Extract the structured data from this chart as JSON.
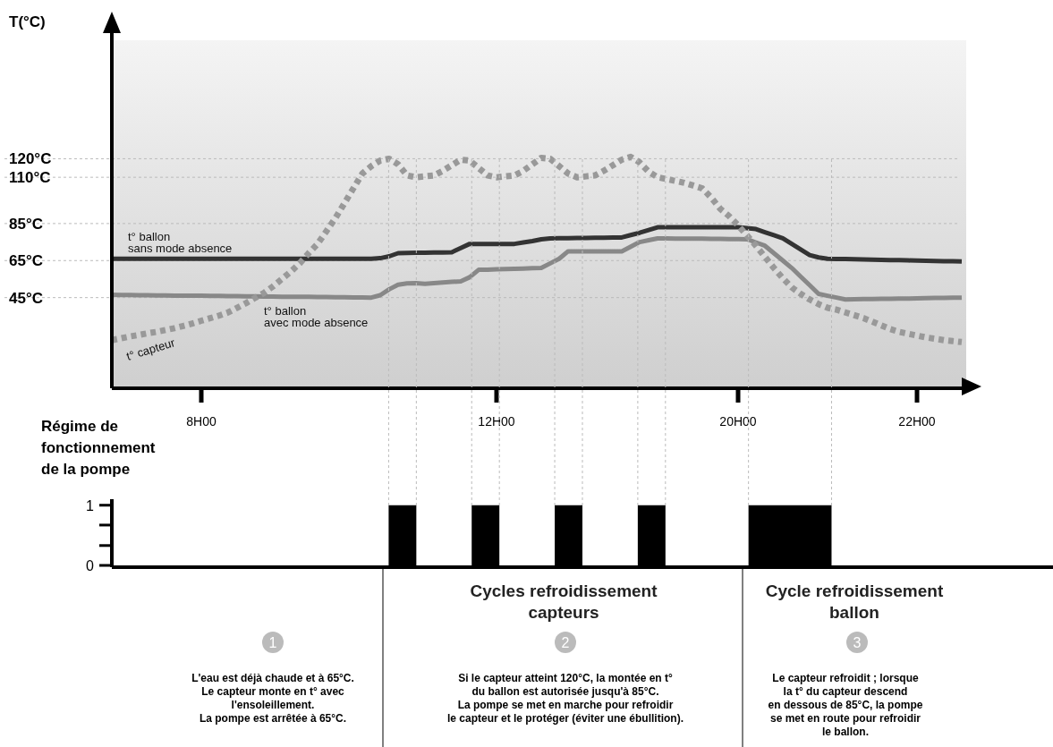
{
  "chart_data": [
    {
      "type": "line",
      "ylabel": "T(°C)",
      "ylim": [
        -3,
        184
      ],
      "categories": [
        null,
        null,
        null,
        null,
        null,
        null,
        null,
        null,
        null,
        null,
        "8H00",
        null,
        null,
        null,
        null,
        null,
        null,
        null,
        null,
        null,
        null,
        null,
        null,
        null,
        null,
        null,
        null,
        null,
        null,
        null,
        null,
        null,
        null,
        null,
        null,
        null,
        null,
        null,
        null,
        null,
        null,
        null,
        null,
        "12H00",
        null,
        null,
        null,
        null,
        null,
        null,
        null,
        null,
        null,
        null,
        null,
        null,
        null,
        null,
        null,
        null,
        null,
        null,
        null,
        null,
        null,
        null,
        null,
        null,
        null,
        null,
        "20H00",
        null,
        null,
        null,
        null,
        null,
        null,
        null,
        null,
        null,
        null,
        null,
        null,
        null,
        null,
        null,
        null,
        null,
        null,
        null,
        "22H00",
        null,
        null,
        null,
        null,
        null
      ],
      "yticks": [
        {
          "value": 45,
          "label": "45°C"
        },
        {
          "value": 65,
          "label": "65°C"
        },
        {
          "value": 85,
          "label": "85°C"
        },
        {
          "value": 110,
          "label": "110°C"
        },
        {
          "value": 120,
          "label": "120°C"
        }
      ],
      "grid": "y",
      "series": [
        {
          "name": "t° ballon\nsans mode absence",
          "color": "#333333",
          "line_style": "solid",
          "values": [
            66,
            66,
            66,
            66,
            66,
            66,
            66,
            66,
            66,
            66,
            66,
            66,
            66,
            66,
            66,
            66,
            66,
            66,
            66,
            66,
            66,
            66,
            66,
            66,
            66,
            66,
            66,
            66,
            66,
            66,
            66.3,
            67.3,
            69,
            69.1,
            69.2,
            69.2,
            69.3,
            69.4,
            69.5,
            71.8,
            74,
            74,
            74,
            74,
            74,
            74,
            74.8,
            75.5,
            76.5,
            77,
            77.1,
            77.1,
            77.2,
            77.2,
            77.3,
            77.3,
            77.4,
            77.5,
            78.8,
            80,
            81.5,
            83,
            83,
            83,
            83,
            83,
            83,
            83,
            83,
            83,
            83,
            82.5,
            82,
            80.3,
            78.7,
            77,
            74,
            71,
            68,
            66.7,
            66,
            65.9,
            65.8,
            65.7,
            65.6,
            65.5,
            65.4,
            65.3,
            65.2,
            65.1,
            65,
            64.9,
            64.8,
            64.7,
            64.6,
            64.5
          ]
        },
        {
          "name": "t° ballon\navec mode absence",
          "color": "#888888",
          "line_style": "solid",
          "values": [
            46.5,
            46.4,
            46.4,
            46.3,
            46.3,
            46.2,
            46.2,
            46.1,
            46.1,
            46,
            46,
            45.9,
            45.9,
            45.8,
            45.8,
            45.7,
            45.7,
            45.6,
            45.6,
            45.5,
            45.5,
            45.4,
            45.4,
            45.3,
            45.3,
            45.2,
            45.2,
            45.1,
            45.1,
            45,
            46.3,
            49.5,
            52,
            52.7,
            52.8,
            52.5,
            52.8,
            53.2,
            53.5,
            53.8,
            56,
            60,
            60.1,
            60.3,
            60.4,
            60.6,
            60.7,
            60.9,
            61,
            63.5,
            66,
            70,
            70,
            70,
            70,
            70,
            70,
            70,
            72.5,
            75,
            76,
            77,
            77,
            76.9,
            76.9,
            76.8,
            76.8,
            76.7,
            76.7,
            76.6,
            76.6,
            76.5,
            74.8,
            73,
            69,
            65,
            61,
            56.3,
            51.7,
            47,
            46,
            45,
            44,
            44.1,
            44.2,
            44.2,
            44.3,
            44.4,
            44.5,
            44.5,
            44.6,
            44.7,
            44.8,
            44.8,
            44.9,
            45
          ]
        },
        {
          "name": "t° capteur",
          "color": "#999999",
          "line_style": "dotted",
          "values": [
            22,
            23,
            24,
            24.8,
            25.7,
            26.5,
            27.5,
            28.5,
            29.7,
            31,
            32.5,
            33.9,
            35.3,
            37,
            39.5,
            42,
            44.8,
            47.5,
            51,
            55,
            59,
            63.5,
            69,
            74,
            81,
            88,
            96,
            104,
            112,
            116,
            119,
            120,
            117,
            111,
            110,
            110.5,
            111,
            113.5,
            116.5,
            119.5,
            119,
            115,
            111,
            110,
            110.5,
            111,
            113.5,
            117,
            120.5,
            120,
            116,
            112,
            110,
            110.5,
            111,
            113.5,
            116.5,
            119.5,
            121,
            118,
            113,
            110,
            109,
            108,
            107,
            105.5,
            104,
            99,
            93,
            89,
            84,
            78.5,
            73,
            67,
            61,
            55.5,
            50.5,
            47,
            44,
            41.5,
            39.5,
            38.5,
            37,
            35.5,
            34,
            32,
            30,
            28,
            26.5,
            25.5,
            24.5,
            23.5,
            22.8,
            22,
            21.5,
            21
          ]
        }
      ]
    },
    {
      "type": "area",
      "ylabel": "Régime de fonctionnement de la pompe",
      "ylim": [
        0,
        1.1
      ],
      "grid": "x",
      "categories": [
        null,
        null,
        null,
        null,
        null,
        null,
        null,
        null,
        null,
        null,
        null,
        null,
        null,
        null,
        null,
        null,
        null,
        null,
        null,
        null,
        null,
        null,
        null,
        null,
        null,
        null,
        null,
        null,
        null,
        null,
        null,
        null,
        null,
        null,
        null
      ],
      "yticks": [
        0,
        {
          "value": 0.33,
          "label": null
        },
        {
          "value": 0.67,
          "label": null
        },
        1
      ],
      "series": [
        {
          "color": "#000000",
          "values": [
            0,
            0,
            0,
            0,
            0,
            0,
            0,
            0,
            0,
            0,
            1,
            0,
            0,
            1,
            0,
            0,
            1,
            0,
            0,
            1,
            0,
            0,
            0,
            1,
            1,
            1,
            0,
            0,
            0,
            0,
            0,
            0,
            0,
            0,
            0
          ]
        }
      ],
      "annotations": [
        "Cycles refroidissement\ncapteurs",
        "Cycle refroidissement\nballon",
        "1",
        "2",
        "3",
        "L'eau est déjà chaude et à 65°C.\nLe capteur monte en t° avec\nl'ensoleillement.\nLa pompe est arrêtée à 65°C.",
        "Si le capteur atteint 120°C, la montée en t°\ndu ballon est autorisée jusqu'à 85°C.\nLa pompe se met en marche pour refroidir\nle capteur et le protéger (éviter une ébullition).",
        "Le capteur refroidit ; lorsque\nla t° du capteur descend\nen dessous de 85°C, la pompe\nse met en route pour refroidir\nle ballon."
      ]
    }
  ]
}
